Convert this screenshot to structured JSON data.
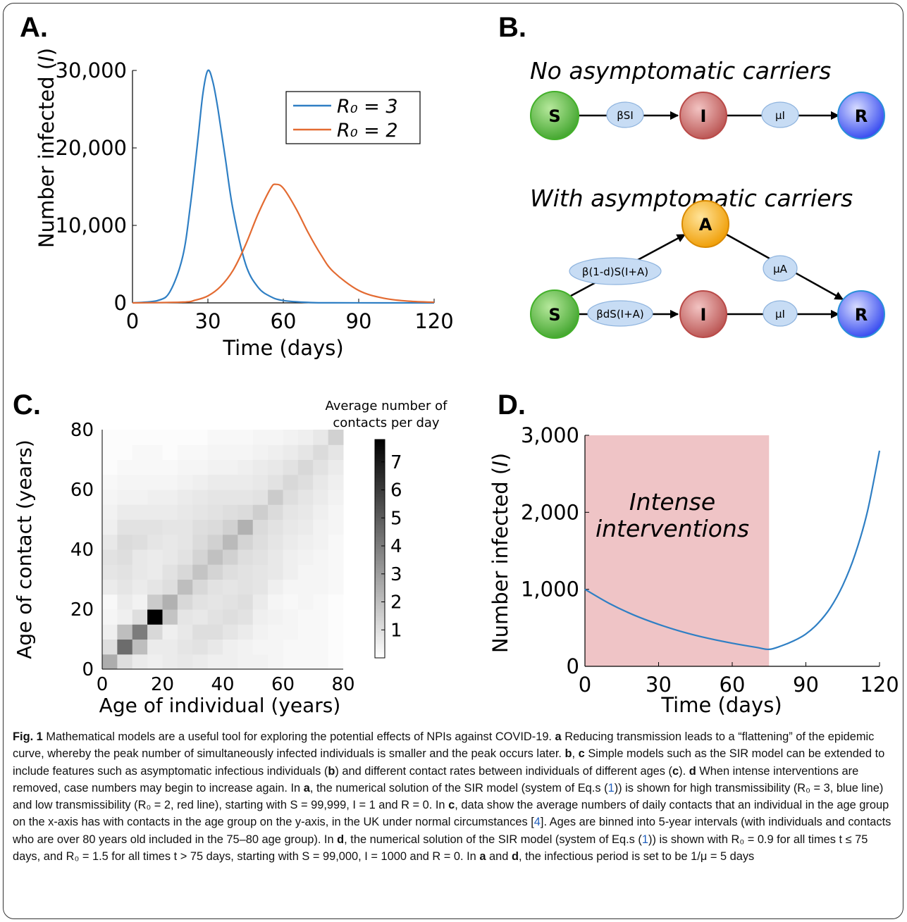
{
  "panels": {
    "a": {
      "letter": "A.",
      "ylabel_text": "Number infected (",
      "ylabel_var": "I",
      "ylabel_close": ")",
      "xlabel": "Time (days)",
      "xticks": [
        "0",
        "30",
        "60",
        "90",
        "120"
      ],
      "yticks": [
        "0",
        "10,000",
        "20,000",
        "30,000"
      ],
      "legend": [
        {
          "label": "R₀ = 3",
          "color": "#2f7fc4"
        },
        {
          "label": "R₀ = 2",
          "color": "#e36b32"
        }
      ]
    },
    "b": {
      "letter": "B.",
      "title_top": "No asymptomatic carriers",
      "title_bottom": "With asymptomatic carriers",
      "nodes": {
        "S": "S",
        "I": "I",
        "R": "R",
        "A": "A"
      },
      "rates_top": [
        "βSI",
        "μI"
      ],
      "rates_bottom": [
        "β(1-d)S(I+A)",
        "βdS(I+A)",
        "μA",
        "μI"
      ]
    },
    "c": {
      "letter": "C.",
      "ylabel": "Age of contact (years)",
      "xlabel": "Age of individual (years)",
      "ticks": [
        "0",
        "20",
        "40",
        "60",
        "80"
      ],
      "colorbar_title_1": "Average number of",
      "colorbar_title_2": "contacts per day",
      "colorbar_ticks": [
        "1",
        "2",
        "3",
        "4",
        "5",
        "6",
        "7"
      ]
    },
    "d": {
      "letter": "D.",
      "ylabel_text": "Number infected (",
      "ylabel_var": "I",
      "ylabel_close": ")",
      "xlabel": "Time (days)",
      "xticks": [
        "0",
        "30",
        "60",
        "90",
        "120"
      ],
      "yticks": [
        "0",
        "1,000",
        "2,000",
        "3,000"
      ],
      "shade_label_1": "Intense",
      "shade_label_2": "interventions"
    }
  },
  "colors": {
    "blue": "#2f7fc4",
    "orange": "#e36b32",
    "shade": "#efc4c6",
    "S": "#43b02a",
    "I": "#b94a48",
    "R": "#3a4df0",
    "A": "#f0a000",
    "rate": "#c7dcf4"
  },
  "chart_data": [
    {
      "panel": "a",
      "type": "line",
      "xlabel": "Time (days)",
      "ylabel": "Number infected (I)",
      "xlim": [
        0,
        120
      ],
      "ylim": [
        0,
        30000
      ],
      "series": [
        {
          "name": "R₀ = 3",
          "x": [
            0,
            10,
            15,
            20,
            23,
            26,
            28,
            30,
            32,
            34,
            37,
            40,
            45,
            50,
            55,
            60,
            70,
            80,
            120
          ],
          "y": [
            0,
            300,
            1500,
            6000,
            12500,
            21000,
            27000,
            30000,
            28500,
            25000,
            18500,
            12000,
            5000,
            2000,
            800,
            300,
            50,
            10,
            0
          ]
        },
        {
          "name": "R₀ = 2",
          "x": [
            0,
            20,
            25,
            30,
            35,
            40,
            45,
            50,
            55,
            57,
            60,
            65,
            70,
            75,
            80,
            90,
            100,
            110,
            120
          ],
          "y": [
            0,
            100,
            350,
            900,
            2100,
            4200,
            7500,
            11500,
            14800,
            15300,
            14800,
            12200,
            9000,
            6200,
            4000,
            1600,
            600,
            220,
            80
          ]
        }
      ]
    },
    {
      "panel": "c",
      "type": "heatmap",
      "xlabel": "Age of individual (years)",
      "ylabel": "Age of contact (years)",
      "bin_width": 5,
      "xlim": [
        0,
        80
      ],
      "ylim": [
        0,
        80
      ],
      "colorbar_range": [
        0,
        7.8
      ],
      "values": [
        [
          2.5,
          1.0,
          0.6,
          0.5,
          0.6,
          0.7,
          0.6,
          0.5,
          0.5,
          0.4,
          0.4,
          0.3,
          0.2,
          0.2,
          0.2,
          0.1
        ],
        [
          1.0,
          4.5,
          2.0,
          0.6,
          0.6,
          0.8,
          0.9,
          0.7,
          0.5,
          0.4,
          0.3,
          0.3,
          0.2,
          0.2,
          0.2,
          0.1
        ],
        [
          0.5,
          2.0,
          4.0,
          1.2,
          0.5,
          0.7,
          1.0,
          1.0,
          0.8,
          0.6,
          0.4,
          0.3,
          0.3,
          0.2,
          0.2,
          0.1
        ],
        [
          0.3,
          0.5,
          1.0,
          7.8,
          1.8,
          0.8,
          0.7,
          0.9,
          1.0,
          0.9,
          0.5,
          0.4,
          0.3,
          0.2,
          0.2,
          0.1
        ],
        [
          0.2,
          0.6,
          0.4,
          1.6,
          2.4,
          1.2,
          0.9,
          0.8,
          0.9,
          1.0,
          0.6,
          0.3,
          0.2,
          0.3,
          0.2,
          0.1
        ],
        [
          0.6,
          0.8,
          0.6,
          0.8,
          1.0,
          2.0,
          1.2,
          0.9,
          0.8,
          0.9,
          0.8,
          0.5,
          0.3,
          0.3,
          0.3,
          0.2
        ],
        [
          0.8,
          0.9,
          0.7,
          0.6,
          0.9,
          1.2,
          1.8,
          1.3,
          1.0,
          0.9,
          0.8,
          0.7,
          0.5,
          0.3,
          0.3,
          0.2
        ],
        [
          0.9,
          1.0,
          0.7,
          0.6,
          0.7,
          0.9,
          1.3,
          1.9,
          1.4,
          1.0,
          0.9,
          0.7,
          0.5,
          0.4,
          0.3,
          0.2
        ],
        [
          0.7,
          1.1,
          1.0,
          0.8,
          0.7,
          0.8,
          1.1,
          1.4,
          2.1,
          1.3,
          1.0,
          0.8,
          0.6,
          0.5,
          0.4,
          0.2
        ],
        [
          0.5,
          0.9,
          0.9,
          0.9,
          0.8,
          0.8,
          1.0,
          1.1,
          1.4,
          2.4,
          1.1,
          0.9,
          0.7,
          0.6,
          0.4,
          0.3
        ],
        [
          0.4,
          0.6,
          0.6,
          0.6,
          0.6,
          0.7,
          0.8,
          0.9,
          1.0,
          1.1,
          1.5,
          1.1,
          0.8,
          0.7,
          0.5,
          0.3
        ],
        [
          0.3,
          0.4,
          0.4,
          0.5,
          0.5,
          0.6,
          0.7,
          0.8,
          0.8,
          0.8,
          0.9,
          1.6,
          1.0,
          0.8,
          0.6,
          0.4
        ],
        [
          0.2,
          0.3,
          0.3,
          0.3,
          0.3,
          0.4,
          0.5,
          0.6,
          0.6,
          0.6,
          0.7,
          0.9,
          1.2,
          1.0,
          0.7,
          0.5
        ],
        [
          0.1,
          0.2,
          0.2,
          0.2,
          0.2,
          0.3,
          0.3,
          0.4,
          0.4,
          0.5,
          0.6,
          0.7,
          0.9,
          1.2,
          0.9,
          0.6
        ],
        [
          0.1,
          0.1,
          0.2,
          0.2,
          0.1,
          0.2,
          0.2,
          0.3,
          0.3,
          0.3,
          0.4,
          0.5,
          0.6,
          0.8,
          1.1,
          0.8
        ],
        [
          0.1,
          0.1,
          0.1,
          0.1,
          0.1,
          0.1,
          0.1,
          0.2,
          0.2,
          0.2,
          0.3,
          0.3,
          0.4,
          0.5,
          0.7,
          1.4
        ]
      ]
    },
    {
      "panel": "d",
      "type": "line",
      "xlabel": "Time (days)",
      "ylabel": "Number infected (I)",
      "xlim": [
        0,
        120
      ],
      "ylim": [
        0,
        3000
      ],
      "shaded_interval": [
        0,
        75
      ],
      "series": [
        {
          "x": [
            0,
            10,
            20,
            30,
            40,
            50,
            60,
            70,
            75,
            80,
            85,
            90,
            95,
            100,
            105,
            110,
            115,
            120
          ],
          "y": [
            1000,
            815,
            665,
            545,
            445,
            365,
            300,
            245,
            220,
            265,
            330,
            420,
            560,
            760,
            1050,
            1450,
            2000,
            2800
          ]
        }
      ]
    }
  ],
  "caption": {
    "fig_label": "Fig. 1",
    "sentences": [
      {
        "t": "Mathematical models are a useful tool for exploring the potential effects of NPIs against COVID-19. ",
        "b": false
      },
      {
        "t": "a",
        "b": true
      },
      {
        "t": " Reducing transmission leads to a “flattening” of the epidemic curve, whereby the peak number of simultaneously infected individuals is smaller and the peak occurs later. ",
        "b": false
      },
      {
        "t": "b",
        "b": true
      },
      {
        "t": ", ",
        "b": false
      },
      {
        "t": "c",
        "b": true
      },
      {
        "t": " Simple models such as the SIR model can be extended to include features such as asymptomatic infectious individuals (",
        "b": false
      },
      {
        "t": "b",
        "b": true
      },
      {
        "t": ") and different contact rates between individuals of different ages (",
        "b": false
      },
      {
        "t": "c",
        "b": true
      },
      {
        "t": "). ",
        "b": false
      },
      {
        "t": "d",
        "b": true
      },
      {
        "t": " When intense interventions are removed, case numbers may begin to increase again. In ",
        "b": false
      },
      {
        "t": "a",
        "b": true
      },
      {
        "t": ", the numerical solution of the SIR model (system of Eq.s (",
        "b": false
      },
      {
        "t": "1",
        "r": true
      },
      {
        "t": ")) is shown for high transmissibility (R₀ = 3, blue line) and low transmissibility (R₀ = 2, red line), starting with S = 99,999, I = 1 and R = 0. In ",
        "b": false
      },
      {
        "t": "c",
        "b": true
      },
      {
        "t": ", data show the average numbers of daily contacts that an individual in the age group on the x-axis has with contacts in the age group on the y-axis, in the UK under normal circumstances [",
        "b": false
      },
      {
        "t": "4",
        "r": true
      },
      {
        "t": "]. Ages are binned into 5-year intervals (with individuals and contacts who are over 80 years old included in the 75–80 age group). In ",
        "b": false
      },
      {
        "t": "d",
        "b": true
      },
      {
        "t": ", the numerical solution of the SIR model (system of Eq.s (",
        "b": false
      },
      {
        "t": "1",
        "r": true
      },
      {
        "t": ")) is shown with R₀ = 0.9 for all times t ≤ 75 days, and R₀ = 1.5 for all times t > 75 days, starting with S = 99,000, I = 1000 and R = 0. In ",
        "b": false
      },
      {
        "t": "a",
        "b": true
      },
      {
        "t": " and ",
        "b": false
      },
      {
        "t": "d",
        "b": true
      },
      {
        "t": ", the infectious period is set to be 1/μ = 5 days",
        "b": false
      }
    ]
  }
}
